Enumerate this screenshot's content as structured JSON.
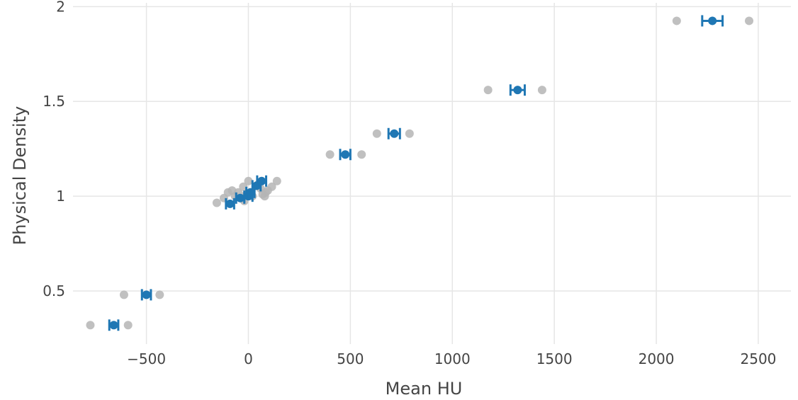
{
  "chart_data": {
    "type": "scatter",
    "xlabel": "Mean HU",
    "ylabel": "Physical Density",
    "xlim": [
      -860,
      2660
    ],
    "ylim": [
      0.22,
      2.02
    ],
    "x_ticks": [
      -500,
      0,
      500,
      1000,
      1500,
      2000,
      2500
    ],
    "x_tick_labels": [
      "−500",
      "0",
      "500",
      "1000",
      "1500",
      "2000",
      "2500"
    ],
    "y_ticks": [
      0.5,
      1,
      1.5,
      2
    ],
    "y_tick_labels": [
      "0.5",
      "1",
      "1.5",
      "2"
    ],
    "grid": true,
    "colors": {
      "raw": "#b5b5b5",
      "mean": "#1f77b4",
      "grid": "#e6e6e6",
      "text": "#444444"
    },
    "series": [
      {
        "kind": "raw-points",
        "points": [
          [
            -775,
            0.32
          ],
          [
            -590,
            0.32
          ],
          [
            -610,
            0.48
          ],
          [
            -435,
            0.48
          ],
          [
            -155,
            0.965
          ],
          [
            -120,
            0.99
          ],
          [
            -100,
            1.02
          ],
          [
            -80,
            1.03
          ],
          [
            -65,
            1.0
          ],
          [
            -50,
            1.02
          ],
          [
            -35,
            0.99
          ],
          [
            -25,
            1.05
          ],
          [
            -20,
            0.975
          ],
          [
            -10,
            1.01
          ],
          [
            0,
            1.08
          ],
          [
            10,
            1.02
          ],
          [
            20,
            1.0
          ],
          [
            45,
            1.06
          ],
          [
            60,
            1.04
          ],
          [
            70,
            1.01
          ],
          [
            80,
            1.0
          ],
          [
            85,
            1.02
          ],
          [
            95,
            1.03
          ],
          [
            115,
            1.05
          ],
          [
            140,
            1.08
          ],
          [
            400,
            1.22
          ],
          [
            555,
            1.22
          ],
          [
            630,
            1.33
          ],
          [
            790,
            1.33
          ],
          [
            1175,
            1.56
          ],
          [
            1440,
            1.56
          ],
          [
            2100,
            1.925
          ],
          [
            2455,
            1.925
          ]
        ]
      },
      {
        "kind": "mean-with-error",
        "points": [
          {
            "x": -660,
            "y": 0.32,
            "err": 22
          },
          {
            "x": -500,
            "y": 0.48,
            "err": 22
          },
          {
            "x": -90,
            "y": 0.96,
            "err": 20
          },
          {
            "x": -40,
            "y": 0.99,
            "err": 20
          },
          {
            "x": 0,
            "y": 1.0,
            "err": 20
          },
          {
            "x": 10,
            "y": 1.02,
            "err": 20
          },
          {
            "x": 40,
            "y": 1.055,
            "err": 20
          },
          {
            "x": 65,
            "y": 1.08,
            "err": 22
          },
          {
            "x": 475,
            "y": 1.22,
            "err": 25
          },
          {
            "x": 715,
            "y": 1.33,
            "err": 28
          },
          {
            "x": 1320,
            "y": 1.56,
            "err": 35
          },
          {
            "x": 2275,
            "y": 1.925,
            "err": 50
          }
        ]
      }
    ]
  }
}
